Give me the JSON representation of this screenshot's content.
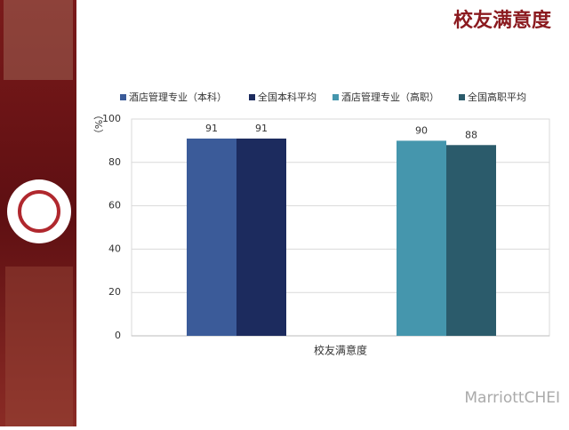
{
  "chart_data": {
    "type": "bar",
    "title": "校友满意度",
    "y_label": "（%）",
    "categories": [
      "校友满意度"
    ],
    "series": [
      {
        "name": "酒店管理专业（本科）",
        "color": "#3b5b99",
        "values": [
          91
        ]
      },
      {
        "name": "全国本科平均",
        "color": "#1c2b5e",
        "values": [
          91
        ]
      },
      {
        "name": "酒店管理专业（高职）",
        "color": "#4596ad",
        "values": [
          90
        ]
      },
      {
        "name": "全国高职平均",
        "color": "#2b5b6b",
        "values": [
          88
        ]
      }
    ],
    "ylim": [
      0,
      100
    ],
    "yticks": [
      0,
      20,
      40,
      60,
      80,
      100
    ],
    "grid": true,
    "legend": "top"
  },
  "watermark": "MarriottCHEI"
}
